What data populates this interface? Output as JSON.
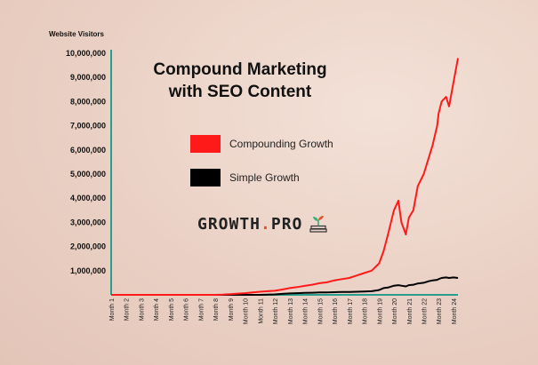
{
  "chart_data": {
    "type": "line",
    "title_lines": [
      "Compound Marketing",
      "with SEO Content"
    ],
    "ylabel": "Website Visitors",
    "xlabel": "",
    "ylim": [
      0,
      10000000
    ],
    "yticks": [
      "1,000,000",
      "2,000,000",
      "3,000,000",
      "4,000,000",
      "5,000,000",
      "6,000,000",
      "7,000,000",
      "8,000,000",
      "9,000,000",
      "10,000,000"
    ],
    "ytick_values": [
      1000000,
      2000000,
      3000000,
      4000000,
      5000000,
      6000000,
      7000000,
      8000000,
      9000000,
      10000000
    ],
    "categories": [
      "Month 1",
      "Month 2",
      "Month 3",
      "Month 4",
      "Month 5",
      "Month 6",
      "Month 7",
      "Month 8",
      "Month 9",
      "Month 10",
      "Month 11",
      "Month 12",
      "Month 13",
      "Month 14",
      "Month 15",
      "Month 16",
      "Month 17",
      "Month 18",
      "Month 19",
      "Month 20",
      "Month 21",
      "Month 22",
      "Month 23",
      "Month 24"
    ],
    "x": [
      1,
      2,
      3,
      4,
      5,
      6,
      7,
      8,
      8.5,
      9,
      9.5,
      10,
      10.5,
      11,
      11.5,
      12,
      12.5,
      13,
      13.5,
      14,
      14.5,
      15,
      15.5,
      16,
      16.5,
      17,
      17.5,
      18,
      18.5,
      19,
      19.3,
      19.6,
      20,
      20.3,
      20.5,
      20.8,
      21,
      21.3,
      21.6,
      22,
      22.3,
      22.6,
      22.9,
      23,
      23.2,
      23.5,
      23.7,
      24,
      24.3
    ],
    "series": [
      {
        "name": "Compounding Growth",
        "color": "#ff1a1a",
        "values": [
          0,
          0,
          0,
          0,
          0,
          0,
          0,
          0,
          10000,
          30000,
          50000,
          70000,
          100000,
          130000,
          150000,
          170000,
          220000,
          280000,
          320000,
          370000,
          420000,
          480000,
          520000,
          600000,
          650000,
          700000,
          800000,
          900000,
          1000000,
          1300000,
          1800000,
          2500000,
          3500000,
          3900000,
          3000000,
          2500000,
          3200000,
          3500000,
          4500000,
          5000000,
          5600000,
          6200000,
          7000000,
          7500000,
          8000000,
          8200000,
          7800000,
          8800000,
          9800000
        ]
      },
      {
        "name": "Simple Growth",
        "color": "#000000",
        "values": [
          0,
          0,
          0,
          0,
          0,
          0,
          0,
          0,
          0,
          0,
          0,
          0,
          0,
          0,
          10000,
          20000,
          40000,
          60000,
          70000,
          80000,
          90000,
          100000,
          100000,
          110000,
          120000,
          120000,
          130000,
          140000,
          150000,
          200000,
          280000,
          300000,
          380000,
          400000,
          380000,
          350000,
          400000,
          420000,
          470000,
          500000,
          560000,
          600000,
          620000,
          650000,
          700000,
          720000,
          700000,
          720000,
          700000
        ]
      }
    ],
    "legend_position": "center-left",
    "grid": false,
    "axis_color": "#2a9d8f"
  },
  "logo": {
    "text_main": "GROWTH",
    "text_dot": ".",
    "text_end": "PRO",
    "icon": "plant-on-books-icon"
  }
}
